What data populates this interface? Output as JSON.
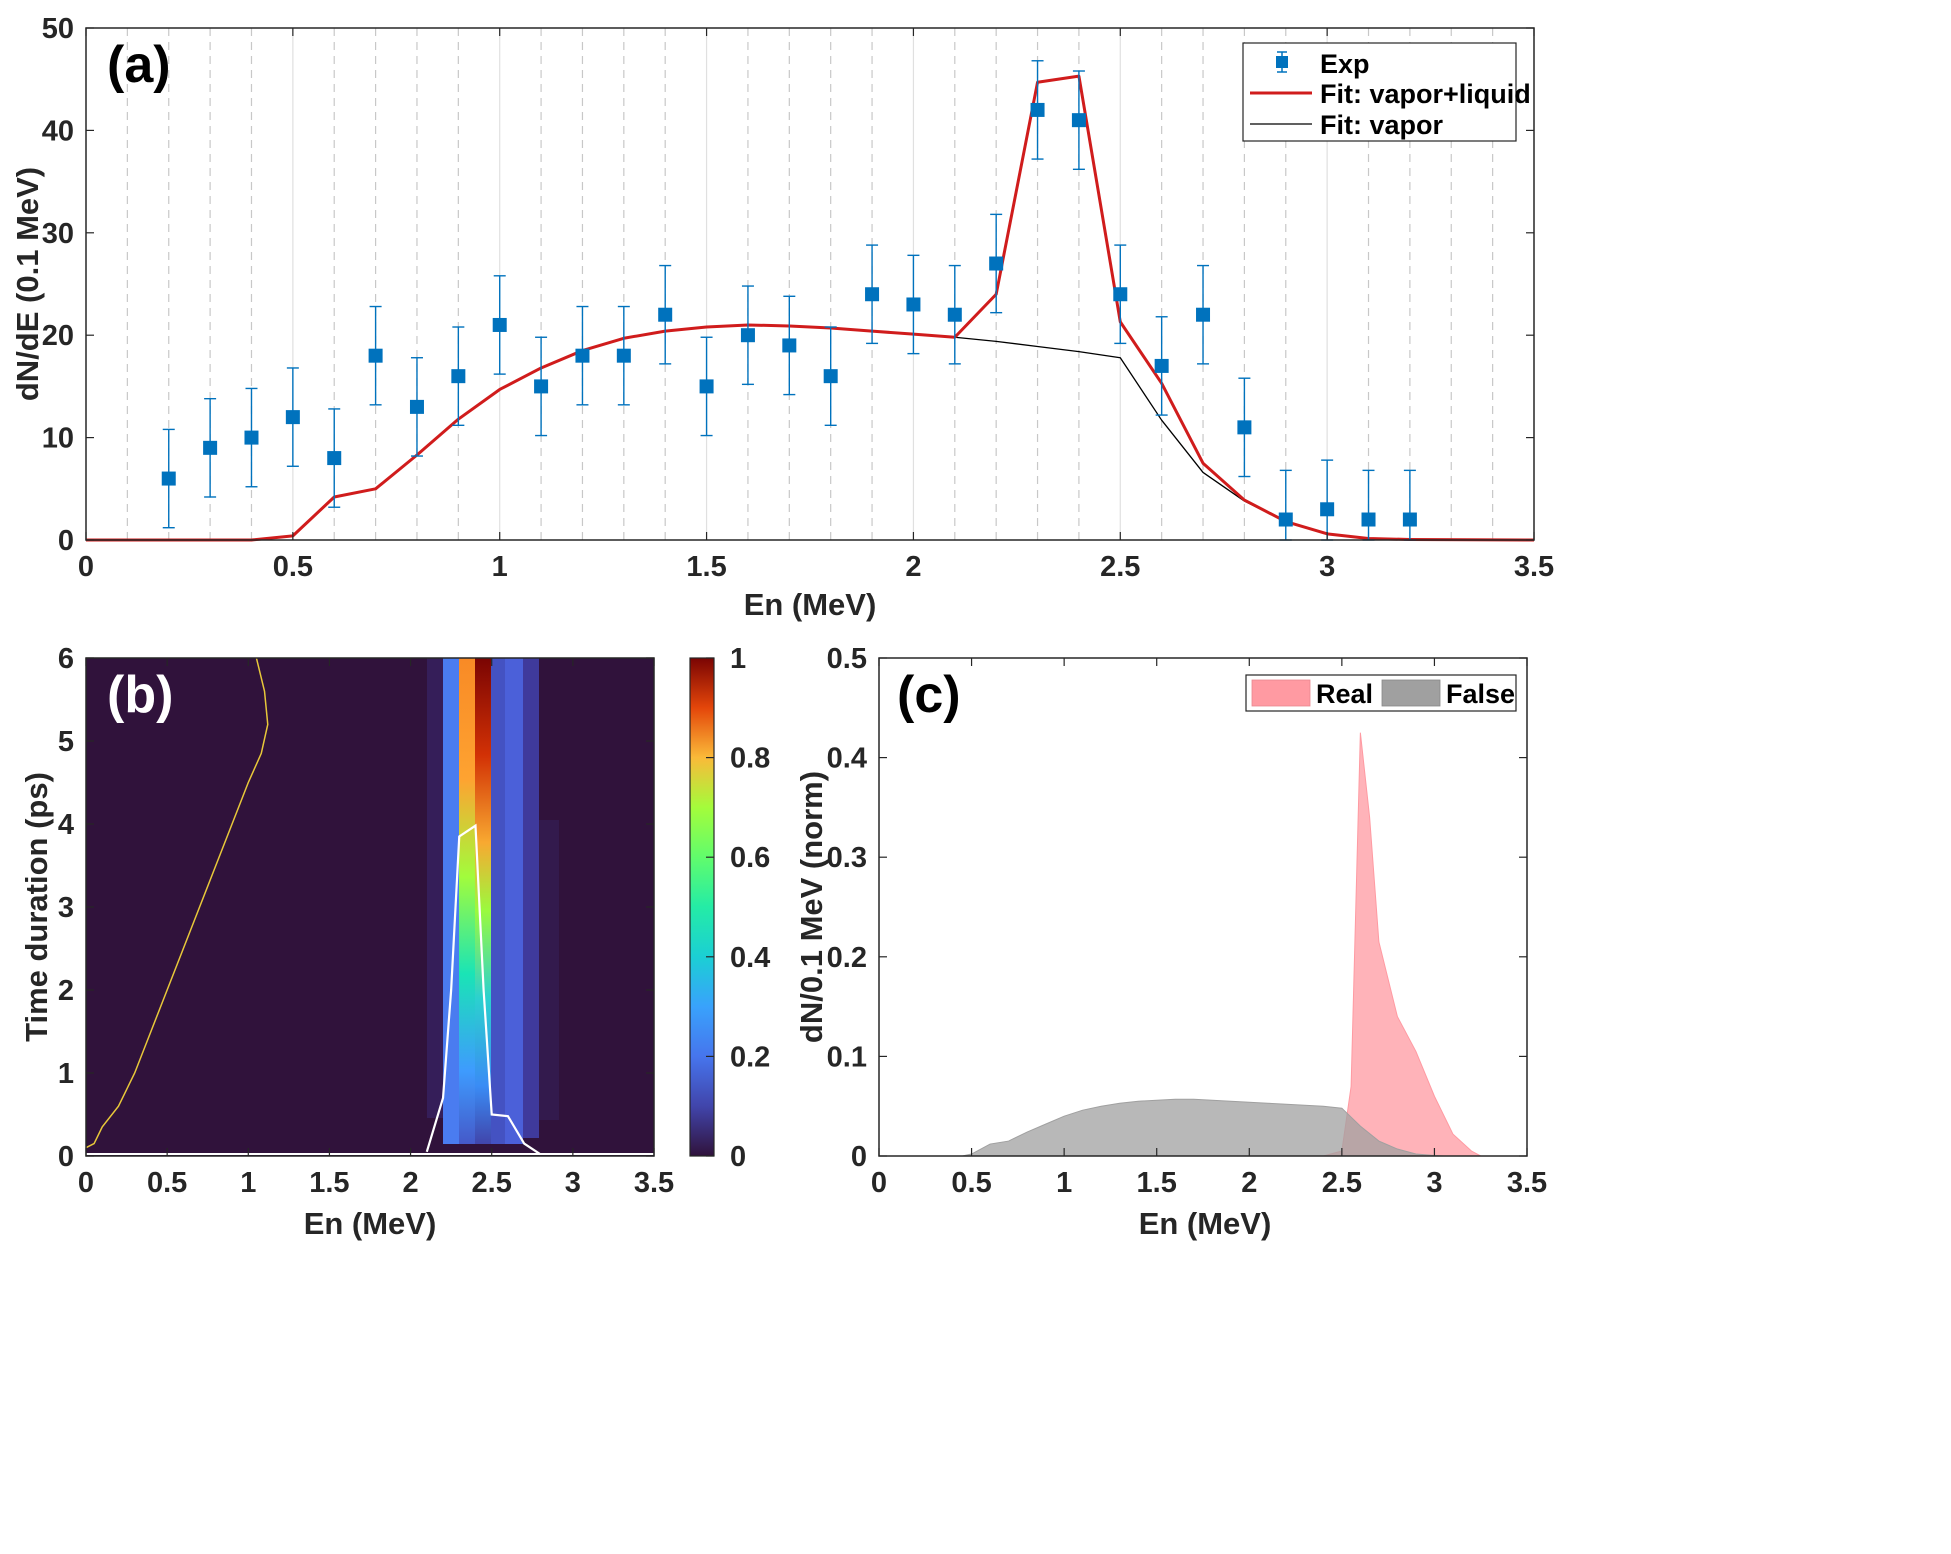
{
  "colors": {
    "exp": "#0072BD",
    "fit_vapor_liquid": "#D01C1C",
    "fit_vapor": "#000000",
    "heatmap_bg": "#30123B",
    "contour_yellow": "#E8C83A",
    "contour_white": "#FFFFFF",
    "real_fill": "#FF9AA2",
    "false_fill": "#A0A0A0"
  },
  "chart_data": [
    {
      "panel": "(a)",
      "type": "scatter",
      "xlabel": "En (MeV)",
      "ylabel": "dN/dE (0.1 MeV)",
      "xlim": [
        0,
        3.5
      ],
      "ylim": [
        0,
        50
      ],
      "xticks": [
        "0",
        "0.5",
        "1",
        "1.5",
        "2",
        "2.5",
        "3",
        "3.5"
      ],
      "yticks": [
        "0",
        "10",
        "20",
        "30",
        "40",
        "50"
      ],
      "grid": "vertical lines every 0.1 MeV, dashed at odd tenths",
      "legend_position": "top-right",
      "legend": [
        "Exp",
        "Fit: vapor+liquid",
        "Fit: vapor"
      ],
      "series": [
        {
          "name": "Exp",
          "style": "square markers with error bars",
          "x": [
            0.2,
            0.3,
            0.4,
            0.5,
            0.6,
            0.7,
            0.8,
            0.9,
            1.0,
            1.1,
            1.2,
            1.3,
            1.4,
            1.5,
            1.6,
            1.7,
            1.8,
            1.9,
            2.0,
            2.1,
            2.2,
            2.3,
            2.4,
            2.5,
            2.6,
            2.7,
            2.8,
            2.9,
            3.0,
            3.1,
            3.2
          ],
          "y": [
            6,
            9,
            10,
            12,
            8,
            18,
            13,
            16,
            21,
            15,
            18,
            18,
            22,
            15,
            20,
            19,
            16,
            24,
            23,
            22,
            27,
            42,
            41,
            24,
            17,
            22,
            11,
            2,
            3,
            2,
            2
          ],
          "err": [
            4.8,
            4.8,
            4.8,
            4.8,
            4.8,
            4.8,
            4.8,
            4.8,
            4.8,
            4.8,
            4.8,
            4.8,
            4.8,
            4.8,
            4.8,
            4.8,
            4.8,
            4.8,
            4.8,
            4.8,
            4.8,
            4.8,
            4.8,
            4.8,
            4.8,
            4.8,
            4.8,
            4.8,
            4.8,
            4.8,
            4.8
          ]
        },
        {
          "name": "Fit: vapor+liquid",
          "style": "line",
          "x": [
            0,
            0.4,
            0.5,
            0.6,
            0.7,
            0.8,
            0.9,
            1.0,
            1.1,
            1.2,
            1.3,
            1.4,
            1.5,
            1.6,
            1.7,
            1.8,
            1.9,
            2.0,
            2.1,
            2.2,
            2.3,
            2.4,
            2.5,
            2.6,
            2.7,
            2.8,
            2.9,
            3.0,
            3.1,
            3.2,
            3.5
          ],
          "y": [
            0,
            0,
            0.4,
            4.2,
            5.0,
            8.3,
            11.8,
            14.7,
            16.8,
            18.5,
            19.7,
            20.4,
            20.8,
            21.0,
            20.9,
            20.7,
            20.4,
            20.1,
            19.8,
            24.0,
            44.7,
            45.3,
            21.3,
            15.3,
            7.5,
            3.9,
            1.8,
            0.6,
            0.15,
            0.05,
            0
          ]
        },
        {
          "name": "Fit: vapor",
          "style": "line",
          "x": [
            0,
            0.4,
            0.5,
            0.6,
            0.7,
            0.8,
            0.9,
            1.0,
            1.1,
            1.2,
            1.3,
            1.4,
            1.5,
            1.6,
            1.7,
            1.8,
            1.9,
            2.0,
            2.1,
            2.2,
            2.3,
            2.4,
            2.5,
            2.6,
            2.7,
            2.8,
            2.9,
            3.0,
            3.1,
            3.2,
            3.5
          ],
          "y": [
            0,
            0,
            0.4,
            4.2,
            5.0,
            8.3,
            11.8,
            14.7,
            16.8,
            18.5,
            19.7,
            20.4,
            20.8,
            21.0,
            20.9,
            20.7,
            20.4,
            20.1,
            19.8,
            19.4,
            18.9,
            18.4,
            17.8,
            11.7,
            6.6,
            3.8,
            1.8,
            0.6,
            0.15,
            0.05,
            0
          ]
        }
      ]
    },
    {
      "panel": "(b)",
      "type": "heatmap",
      "xlabel": "En (MeV)",
      "ylabel": "Time duration (ps)",
      "xlim": [
        0,
        3.5
      ],
      "ylim": [
        0,
        6
      ],
      "xticks": [
        "0",
        "0.5",
        "1",
        "1.5",
        "2",
        "2.5",
        "3",
        "3.5"
      ],
      "yticks": [
        "0",
        "1",
        "2",
        "3",
        "4",
        "5",
        "6"
      ],
      "colorbar": {
        "range": [
          0,
          1
        ],
        "ticks": [
          "0",
          "0.2",
          "0.4",
          "0.6",
          "0.8",
          "1"
        ]
      },
      "columns": [
        {
          "x": [
            2.1,
            2.2
          ],
          "value": 0.03
        },
        {
          "x": [
            2.2,
            2.3
          ],
          "value": 0.2
        },
        {
          "x": [
            2.3,
            2.4
          ],
          "value_top": 0.7,
          "value_bottom": 0.15
        },
        {
          "x": [
            2.4,
            2.5
          ],
          "value_top": 1.0,
          "value_bottom": 0.12
        },
        {
          "x": [
            2.5,
            2.6
          ],
          "value": 0.1
        },
        {
          "x": [
            2.6,
            2.7
          ],
          "value": 0.12
        },
        {
          "x": [
            2.7,
            2.8
          ],
          "value": 0.05
        }
      ],
      "contours": [
        {
          "color": "yellow",
          "x": [
            0,
            0.05,
            0.1,
            0.2,
            0.3,
            0.4,
            0.5,
            0.6,
            0.7,
            0.8,
            0.9,
            1.0,
            1.08,
            1.12,
            1.1,
            1.05
          ],
          "y": [
            0.1,
            0.15,
            0.35,
            0.6,
            1.0,
            1.5,
            2.0,
            2.5,
            3.0,
            3.5,
            4.0,
            4.5,
            4.85,
            5.2,
            5.6,
            6.0
          ]
        },
        {
          "color": "white",
          "x": [
            2.1,
            2.2,
            2.25,
            2.3,
            2.4,
            2.45,
            2.5,
            2.6,
            2.7,
            2.8
          ],
          "y": [
            0.05,
            0.7,
            2.0,
            3.85,
            3.98,
            2.0,
            0.5,
            0.48,
            0.15,
            0.02
          ]
        }
      ]
    },
    {
      "panel": "(c)",
      "type": "area",
      "xlabel": "En (MeV)",
      "ylabel": "dN/0.1 MeV (norm)",
      "xlim": [
        0,
        3.5
      ],
      "ylim": [
        0,
        0.5
      ],
      "xticks": [
        "0",
        "0.5",
        "1",
        "1.5",
        "2",
        "2.5",
        "3",
        "3.5"
      ],
      "yticks": [
        "0",
        "0.1",
        "0.2",
        "0.3",
        "0.4",
        "0.5"
      ],
      "legend_position": "top-right",
      "legend": [
        "Real",
        "False"
      ],
      "series": [
        {
          "name": "Real",
          "x": [
            2.4,
            2.5,
            2.55,
            2.6,
            2.65,
            2.7,
            2.8,
            2.9,
            3.0,
            3.1,
            3.2,
            3.25
          ],
          "y": [
            0,
            0.005,
            0.07,
            0.425,
            0.34,
            0.215,
            0.14,
            0.105,
            0.06,
            0.022,
            0.005,
            0
          ]
        },
        {
          "name": "False",
          "x": [
            0.45,
            0.5,
            0.6,
            0.7,
            0.8,
            0.9,
            1.0,
            1.1,
            1.2,
            1.3,
            1.4,
            1.5,
            1.6,
            1.7,
            1.8,
            1.9,
            2.0,
            2.1,
            2.2,
            2.3,
            2.4,
            2.5,
            2.6,
            2.7,
            2.8,
            2.9,
            3.0,
            3.05
          ],
          "y": [
            0,
            0.002,
            0.012,
            0.015,
            0.024,
            0.032,
            0.04,
            0.046,
            0.05,
            0.053,
            0.055,
            0.056,
            0.057,
            0.057,
            0.056,
            0.055,
            0.054,
            0.053,
            0.052,
            0.051,
            0.05,
            0.048,
            0.03,
            0.015,
            0.007,
            0.002,
            0.0005,
            0
          ]
        }
      ]
    }
  ]
}
